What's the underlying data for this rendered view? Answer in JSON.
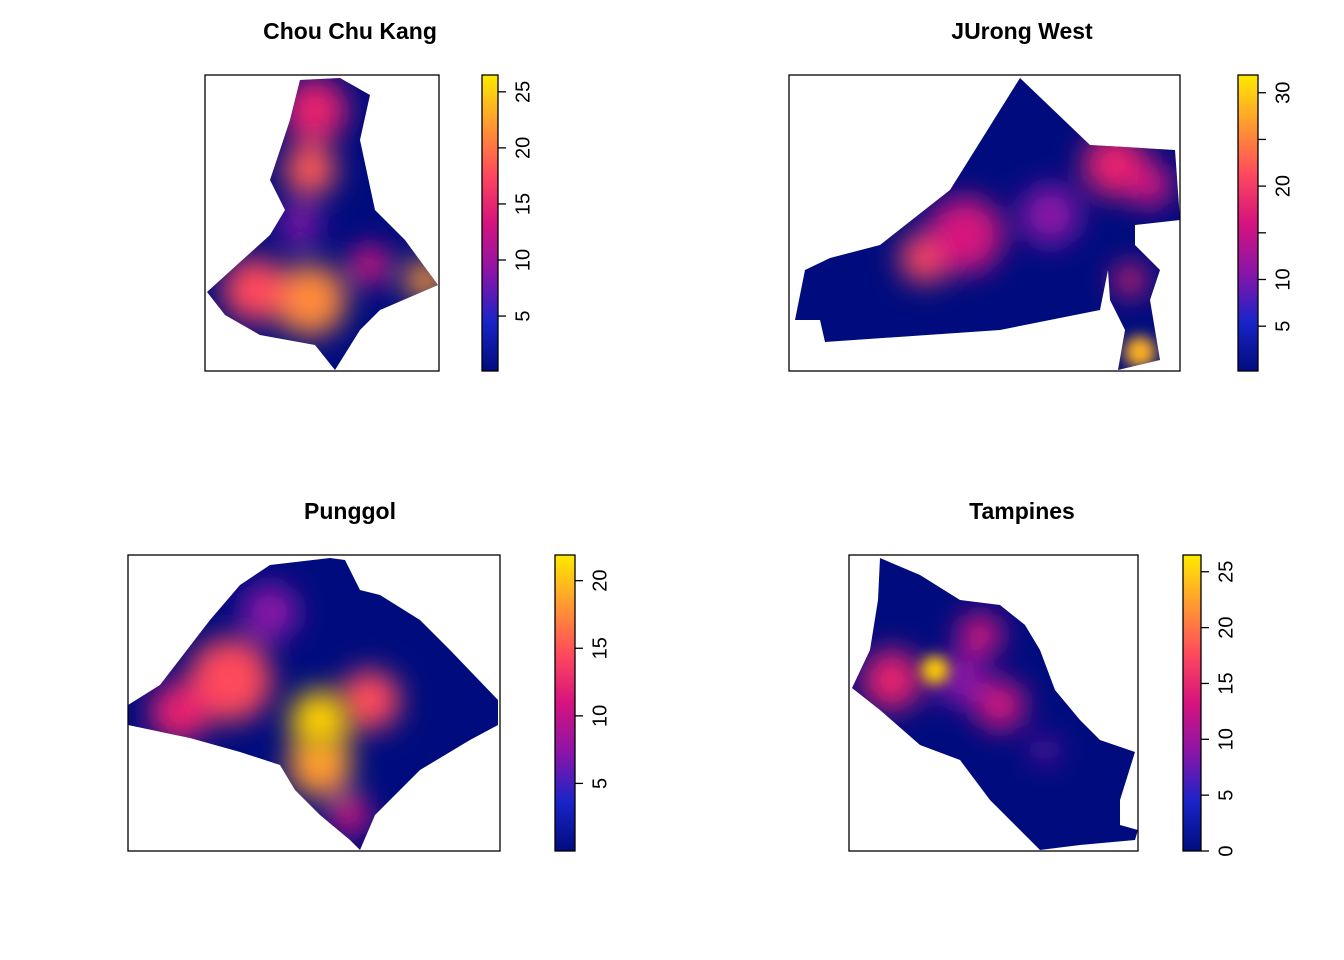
{
  "chart_data": [
    {
      "type": "raster",
      "title": "Chou Chu Kang",
      "ylim": [
        0.1,
        26.5
      ],
      "yticks": [
        5,
        10,
        15,
        20,
        25
      ],
      "colorscale": [
        "#000c7d",
        "#1a24c8",
        "#8b14a8",
        "#d6137e",
        "#ff4a5c",
        "#ff9a30",
        "#ffeb00"
      ]
    },
    {
      "type": "raster",
      "title": "JUrong West",
      "ylim": [
        0.2,
        31.9
      ],
      "yticks": [
        5,
        10,
        20,
        30
      ],
      "minor_yticks": [
        15,
        25
      ],
      "colorscale": [
        "#000c7d",
        "#1a24c8",
        "#8b14a8",
        "#d6137e",
        "#ff4a5c",
        "#ff9a30",
        "#ffeb00"
      ]
    },
    {
      "type": "raster",
      "title": "Punggol",
      "ylim": [
        0,
        21.9
      ],
      "yticks": [
        5,
        10,
        15,
        20
      ],
      "colorscale": [
        "#000c7d",
        "#1a24c8",
        "#8b14a8",
        "#d6137e",
        "#ff4a5c",
        "#ff9a30",
        "#ffeb00"
      ]
    },
    {
      "type": "raster",
      "title": "Tampines",
      "ylim": [
        0,
        26.5
      ],
      "yticks": [
        0,
        5,
        10,
        15,
        20,
        25
      ],
      "colorscale": [
        "#000c7d",
        "#1a24c8",
        "#8b14a8",
        "#d6137e",
        "#ff4a5c",
        "#ff9a30",
        "#ffeb00"
      ]
    }
  ]
}
